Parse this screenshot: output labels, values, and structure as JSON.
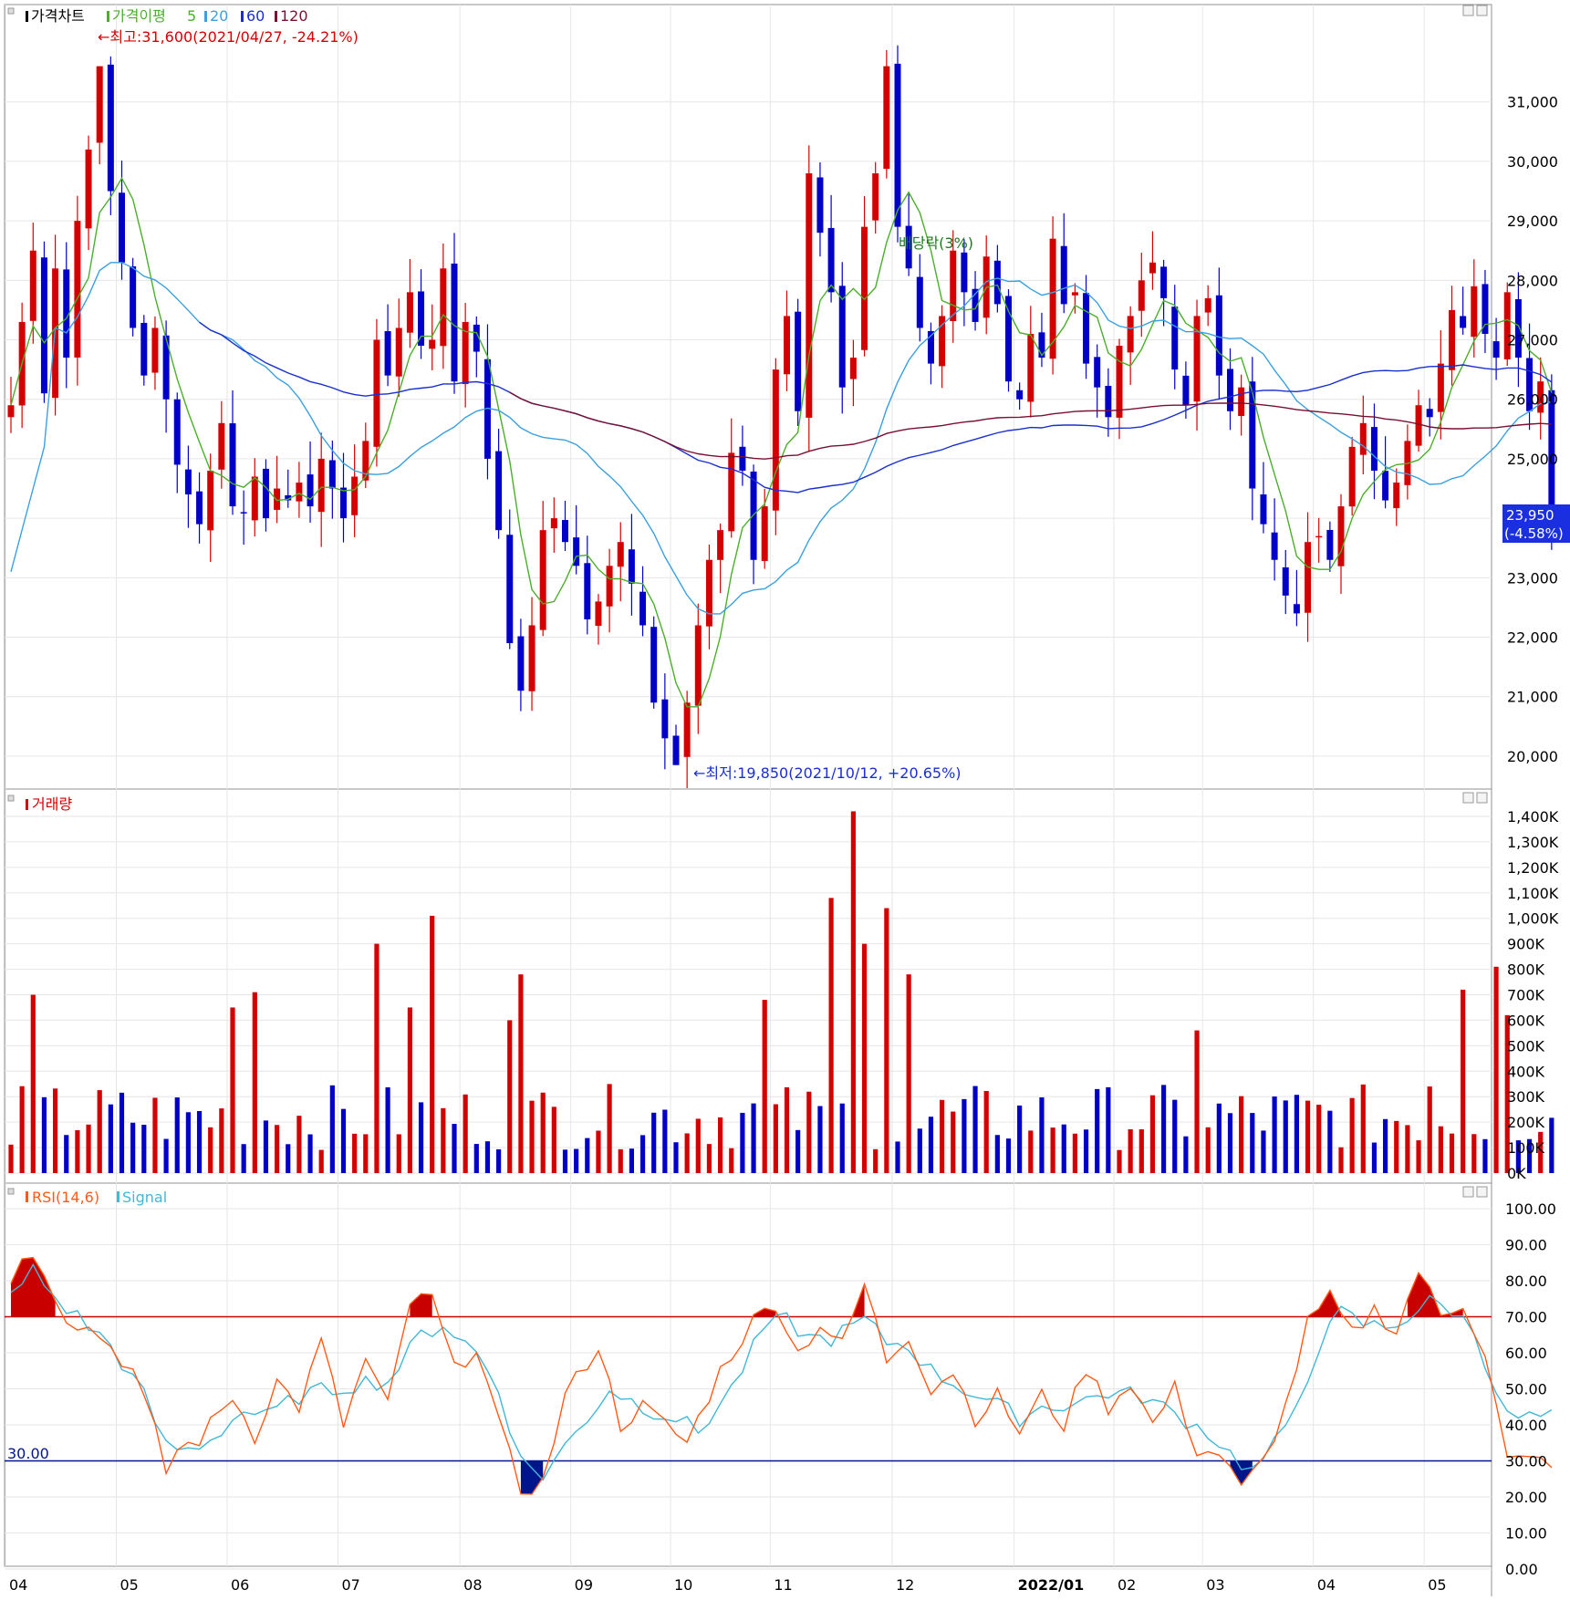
{
  "chart_data": [
    {
      "type": "candlestick",
      "name": "price",
      "legend": {
        "title": "가격차트",
        "ma_label": "가격이평",
        "ma_periods": [
          "5",
          "20",
          "60",
          "120"
        ]
      },
      "colors": {
        "up": "#d40000",
        "down": "#0000c8",
        "ma5": "#4cae2a",
        "ma20": "#3aa0e0",
        "ma60": "#1a2fd0",
        "ma120": "#7a1030"
      },
      "ylim": [
        19600,
        32100
      ],
      "y_ticks": [
        20000,
        21000,
        22000,
        23000,
        24000,
        25000,
        26000,
        27000,
        28000,
        29000,
        30000,
        31000
      ],
      "y_tick_labels": [
        "20,000",
        "21,000",
        "22,000",
        "23,000",
        "24,000",
        "25,000",
        "26,000",
        "27,000",
        "28,000",
        "29,000",
        "30,000",
        "31,000"
      ],
      "anchor_prices": [
        25900,
        27300,
        28500,
        26100,
        28200,
        26700,
        29000,
        30200,
        31600,
        29500,
        28300,
        27200,
        26400,
        27200,
        26000,
        24900,
        24400,
        23900,
        24800,
        25600,
        24200,
        24100,
        24700,
        24000,
        24500,
        24300,
        24600,
        24200,
        25000,
        24500,
        24000,
        24700,
        25300,
        27000,
        26400,
        27200,
        27800,
        26900,
        27000,
        28200,
        26300,
        27300,
        26800,
        25000,
        23800,
        21900,
        21100,
        22200,
        23800,
        24000,
        23600,
        23200,
        22300,
        22600,
        23200,
        23600,
        22900,
        22200,
        20900,
        20300,
        19850,
        20900,
        22200,
        23300,
        23800,
        25100,
        24800,
        23300,
        24200,
        26500,
        27400,
        25800,
        29800,
        28800,
        27800,
        26200,
        26700,
        28900,
        29800,
        31600,
        28900,
        28200,
        27200,
        26600,
        27400,
        28500,
        27800,
        27300,
        28400,
        27600,
        26300,
        26000,
        27100,
        26700,
        28700,
        27600,
        27800,
        26600,
        26200,
        25700,
        26900,
        27400,
        28000,
        28300,
        27700,
        26500,
        25900,
        27400,
        27700,
        26400,
        25800,
        26200,
        24500,
        23900,
        23300,
        22700,
        22400,
        23600,
        23700,
        23300,
        24200,
        25200,
        25600,
        24800,
        24300,
        24600,
        25300,
        25900,
        25700,
        26600,
        27500,
        27200,
        27900,
        27100,
        26700,
        27800,
        26700,
        25800,
        26300,
        23950
      ],
      "current_value": "23,950",
      "current_change": "(-4.58%)",
      "annotations": {
        "high": "←최고:31,600(2021/04/27, -24.21%)",
        "low": "←최저:19,850(2021/10/12, +20.65%)",
        "dividend": "배당락(3%)"
      }
    },
    {
      "type": "bar",
      "name": "volume",
      "title": "거래량",
      "ylim": [
        0,
        1400
      ],
      "y_ticks": [
        0,
        100,
        200,
        300,
        400,
        500,
        600,
        700,
        800,
        900,
        1000,
        1100,
        1200,
        1300,
        1400
      ],
      "y_tick_labels": [
        "0K",
        "100K",
        "200K",
        "300K",
        "400K",
        "500K",
        "600K",
        "700K",
        "800K",
        "900K",
        "1,000K",
        "1,100K",
        "1,200K",
        "1,300K",
        "1,400K"
      ],
      "spikes": [
        [
          2,
          700
        ],
        [
          20,
          650
        ],
        [
          22,
          710
        ],
        [
          33,
          900
        ],
        [
          36,
          650
        ],
        [
          38,
          1010
        ],
        [
          45,
          600
        ],
        [
          46,
          780
        ],
        [
          68,
          680
        ],
        [
          74,
          1080
        ],
        [
          76,
          1420
        ],
        [
          77,
          900
        ],
        [
          79,
          1040
        ],
        [
          81,
          780
        ],
        [
          107,
          560
        ],
        [
          128,
          340
        ],
        [
          131,
          720
        ],
        [
          134,
          810
        ],
        [
          135,
          620
        ]
      ]
    },
    {
      "type": "line",
      "name": "rsi",
      "legend": {
        "rsi": "RSI(14,6)",
        "signal": "Signal"
      },
      "colors": {
        "rsi": "#ff5a14",
        "signal": "#40b8d8",
        "overbought": "#c80000",
        "oversold": "#00148c"
      },
      "ylim": [
        0,
        100
      ],
      "y_ticks": [
        0,
        10,
        20,
        30,
        40,
        50,
        60,
        70,
        80,
        90,
        100
      ],
      "y_tick_labels": [
        "0.00",
        "10.00",
        "20.00",
        "30.00",
        "40.00",
        "50.00",
        "60.00",
        "70.00",
        "80.00",
        "90.00",
        "100.00"
      ],
      "upper_line": 70,
      "lower_line": 30,
      "lower_label": "30.00",
      "rsi_anchors": [
        [
          0,
          80
        ],
        [
          1,
          88
        ],
        [
          3,
          83
        ],
        [
          5,
          70
        ],
        [
          8,
          65
        ],
        [
          11,
          55
        ],
        [
          13,
          38
        ],
        [
          14,
          27
        ],
        [
          15,
          33
        ],
        [
          17,
          36
        ],
        [
          20,
          48
        ],
        [
          22,
          37
        ],
        [
          24,
          52
        ],
        [
          26,
          45
        ],
        [
          28,
          63
        ],
        [
          30,
          40
        ],
        [
          32,
          58
        ],
        [
          34,
          45
        ],
        [
          36,
          74
        ],
        [
          38,
          75
        ],
        [
          40,
          55
        ],
        [
          42,
          62
        ],
        [
          44,
          40
        ],
        [
          46,
          22
        ],
        [
          48,
          24
        ],
        [
          50,
          48
        ],
        [
          53,
          62
        ],
        [
          55,
          40
        ],
        [
          57,
          45
        ],
        [
          59,
          40
        ],
        [
          61,
          35
        ],
        [
          64,
          55
        ],
        [
          67,
          69
        ],
        [
          69,
          74
        ],
        [
          71,
          60
        ],
        [
          73,
          68
        ],
        [
          75,
          62
        ],
        [
          77,
          79
        ],
        [
          79,
          58
        ],
        [
          81,
          65
        ],
        [
          83,
          50
        ],
        [
          85,
          55
        ],
        [
          87,
          42
        ],
        [
          89,
          48
        ],
        [
          91,
          38
        ],
        [
          93,
          48
        ],
        [
          95,
          40
        ],
        [
          97,
          56
        ],
        [
          99,
          45
        ],
        [
          101,
          52
        ],
        [
          103,
          40
        ],
        [
          105,
          50
        ],
        [
          107,
          33
        ],
        [
          109,
          32
        ],
        [
          111,
          22
        ],
        [
          113,
          30
        ],
        [
          115,
          45
        ],
        [
          117,
          68
        ],
        [
          119,
          75
        ],
        [
          121,
          65
        ],
        [
          123,
          72
        ],
        [
          125,
          66
        ],
        [
          127,
          83
        ],
        [
          129,
          70
        ],
        [
          131,
          74
        ],
        [
          133,
          60
        ],
        [
          135,
          30
        ]
      ],
      "signal_anchors": [
        [
          0,
          75
        ],
        [
          2,
          83
        ],
        [
          4,
          75
        ],
        [
          6,
          70
        ],
        [
          9,
          62
        ],
        [
          12,
          48
        ],
        [
          14,
          34
        ],
        [
          16,
          33
        ],
        [
          18,
          36
        ],
        [
          21,
          44
        ],
        [
          23,
          42
        ],
        [
          26,
          48
        ],
        [
          29,
          50
        ],
        [
          32,
          52
        ],
        [
          34,
          52
        ],
        [
          37,
          65
        ],
        [
          39,
          68
        ],
        [
          42,
          60
        ],
        [
          44,
          50
        ],
        [
          46,
          30
        ],
        [
          48,
          26
        ],
        [
          51,
          38
        ],
        [
          54,
          50
        ],
        [
          57,
          45
        ],
        [
          60,
          42
        ],
        [
          62,
          38
        ],
        [
          65,
          50
        ],
        [
          68,
          67
        ],
        [
          70,
          69
        ],
        [
          72,
          64
        ],
        [
          74,
          64
        ],
        [
          77,
          69
        ],
        [
          79,
          63
        ],
        [
          81,
          62
        ],
        [
          83,
          55
        ],
        [
          86,
          50
        ],
        [
          88,
          47
        ],
        [
          91,
          42
        ],
        [
          93,
          45
        ],
        [
          96,
          46
        ],
        [
          99,
          49
        ],
        [
          102,
          48
        ],
        [
          105,
          43
        ],
        [
          108,
          38
        ],
        [
          110,
          32
        ],
        [
          112,
          27
        ],
        [
          115,
          38
        ],
        [
          118,
          62
        ],
        [
          120,
          71
        ],
        [
          122,
          68
        ],
        [
          124,
          67
        ],
        [
          126,
          70
        ],
        [
          128,
          74
        ],
        [
          130,
          72
        ],
        [
          132,
          66
        ],
        [
          135,
          42
        ]
      ]
    }
  ],
  "x_axis": {
    "months": [
      {
        "label": "04",
        "bar": 0
      },
      {
        "label": "05",
        "bar": 10
      },
      {
        "label": "06",
        "bar": 20
      },
      {
        "label": "07",
        "bar": 30
      },
      {
        "label": "08",
        "bar": 41
      },
      {
        "label": "09",
        "bar": 51
      },
      {
        "label": "10",
        "bar": 60
      },
      {
        "label": "11",
        "bar": 69
      },
      {
        "label": "12",
        "bar": 80
      },
      {
        "label": "2022/01",
        "bar": 91
      },
      {
        "label": "02",
        "bar": 100
      },
      {
        "label": "03",
        "bar": 108
      },
      {
        "label": "04",
        "bar": 118
      },
      {
        "label": "05",
        "bar": 128
      }
    ]
  }
}
